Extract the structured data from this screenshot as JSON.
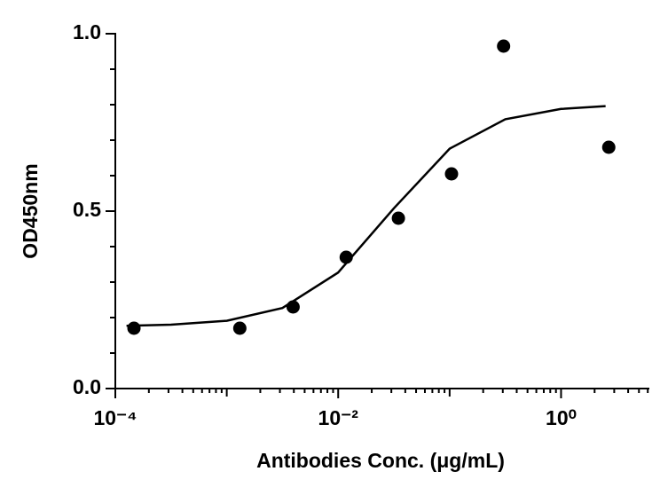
{
  "chart_data": {
    "type": "scatter",
    "xlabel": "Antibodies Conc. (μg/mL)",
    "ylabel": "OD450nm",
    "x_scale": "log",
    "xlim": [
      0.0001,
      6.2
    ],
    "ylim": [
      0,
      1
    ],
    "xticks": [
      {
        "value": 0.0001,
        "label": "10⁻⁴"
      },
      {
        "value": 0.01,
        "label": "10⁻²"
      },
      {
        "value": 1,
        "label": "10⁰"
      }
    ],
    "xminor": [
      0.0002,
      0.0003,
      0.0004,
      0.0005,
      0.0006,
      0.0007,
      0.0008,
      0.0009,
      0.001,
      0.002,
      0.003,
      0.004,
      0.005,
      0.006,
      0.007,
      0.008,
      0.009,
      0.02,
      0.03,
      0.04,
      0.05,
      0.06,
      0.07,
      0.08,
      0.09,
      0.1,
      0.2,
      0.3,
      0.4,
      0.5,
      0.6,
      0.7,
      0.8,
      0.9,
      2,
      3,
      4,
      5,
      6
    ],
    "yticks": [
      {
        "value": 0,
        "label": "0.0"
      },
      {
        "value": 0.5,
        "label": "0.5"
      },
      {
        "value": 1,
        "label": "1.0"
      }
    ],
    "yminor": [
      0.1,
      0.2,
      0.3,
      0.4,
      0.6,
      0.7,
      0.8,
      0.9
    ],
    "color": "#000000",
    "points": {
      "x": [
        0.000147,
        0.00131,
        0.00394,
        0.0118,
        0.0347,
        0.104,
        0.305,
        2.68
      ],
      "values": [
        0.17,
        0.17,
        0.23,
        0.37,
        0.48,
        0.605,
        0.965,
        0.68
      ]
    },
    "fit": {
      "x": [
        0.000126,
        0.000316,
        0.001,
        0.00316,
        0.01,
        0.0316,
        0.1,
        0.316,
        1,
        2.51
      ],
      "values": [
        0.177,
        0.18,
        0.191,
        0.227,
        0.327,
        0.508,
        0.676,
        0.759,
        0.788,
        0.796
      ]
    }
  }
}
